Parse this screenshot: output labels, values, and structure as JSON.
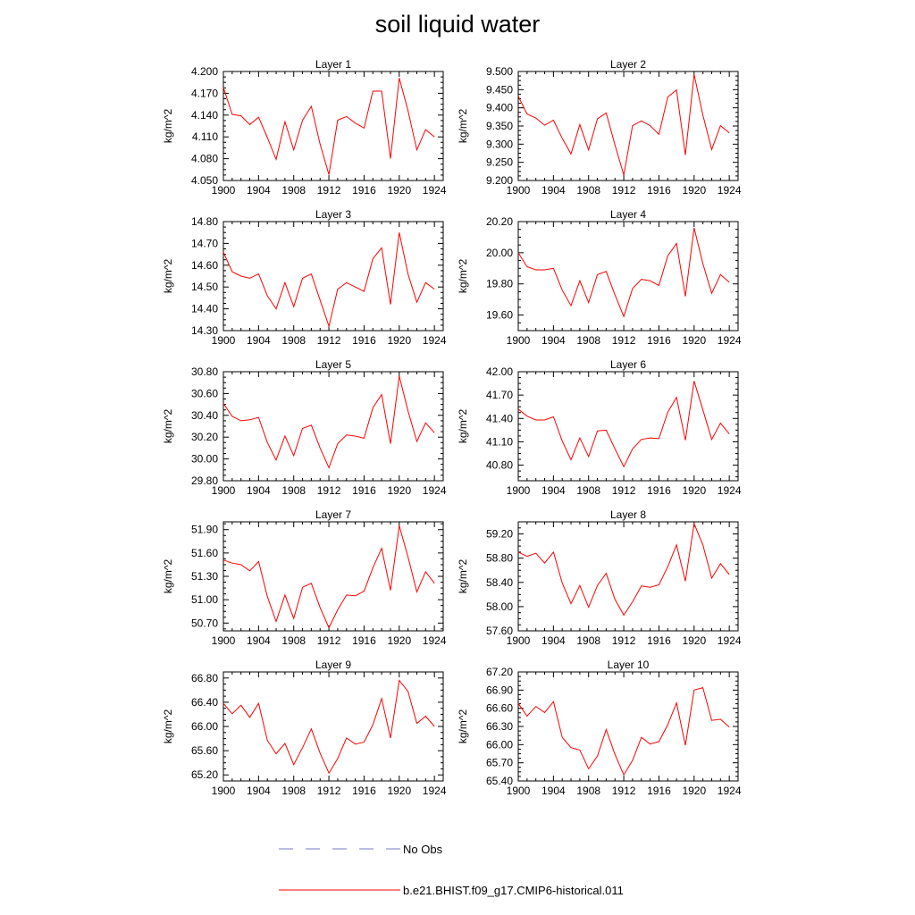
{
  "page_title": "soil liquid water",
  "legend": [
    {
      "label": "No Obs",
      "style": "dashed",
      "color": "#7a7acf"
    },
    {
      "label": "b.e21.BHIST.f09_g17.CMIP6-historical.011",
      "style": "solid",
      "color": "#ff0000"
    }
  ],
  "colors": {
    "series": "#ff0000",
    "obs": "#7a7acf"
  },
  "chart_data": [
    {
      "type": "line",
      "title": "Layer 1",
      "xlabel": "",
      "ylabel": "kg/m^2",
      "xlim": [
        1900,
        1925
      ],
      "ylim": [
        4.05,
        4.2
      ],
      "y_decimals": 3,
      "xticks": [
        1900,
        1904,
        1908,
        1912,
        1916,
        1920,
        1924
      ],
      "yticks": [
        4.05,
        4.08,
        4.11,
        4.14,
        4.17,
        4.2
      ],
      "x": [
        1900,
        1901,
        1902,
        1903,
        1904,
        1905,
        1906,
        1907,
        1908,
        1909,
        1910,
        1911,
        1912,
        1913,
        1914,
        1915,
        1916,
        1917,
        1918,
        1919,
        1920,
        1921,
        1922,
        1923,
        1924
      ],
      "series": [
        {
          "name": "b.e21.BHIST.f09_g17.CMIP6-historical.011",
          "values": [
            4.178,
            4.141,
            4.139,
            4.127,
            4.137,
            4.109,
            4.079,
            4.131,
            4.092,
            4.133,
            4.152,
            4.1,
            4.058,
            4.133,
            4.138,
            4.129,
            4.122,
            4.173,
            4.173,
            4.08,
            4.191,
            4.146,
            4.092,
            4.12,
            4.11
          ]
        }
      ]
    },
    {
      "type": "line",
      "title": "Layer 2",
      "xlabel": "",
      "ylabel": "kg/m^2",
      "xlim": [
        1900,
        1925
      ],
      "ylim": [
        9.2,
        9.5
      ],
      "y_decimals": 3,
      "xticks": [
        1900,
        1904,
        1908,
        1912,
        1916,
        1920,
        1924
      ],
      "yticks": [
        9.2,
        9.25,
        9.3,
        9.35,
        9.4,
        9.45,
        9.5
      ],
      "x": [
        1900,
        1901,
        1902,
        1903,
        1904,
        1905,
        1906,
        1907,
        1908,
        1909,
        1910,
        1911,
        1912,
        1913,
        1914,
        1915,
        1916,
        1917,
        1918,
        1919,
        1920,
        1921,
        1922,
        1923,
        1924
      ],
      "series": [
        {
          "name": "b.e21.BHIST.f09_g17.CMIP6-historical.011",
          "values": [
            9.432,
            9.383,
            9.372,
            9.352,
            9.366,
            9.316,
            9.273,
            9.354,
            9.284,
            9.37,
            9.386,
            9.298,
            9.215,
            9.351,
            9.364,
            9.351,
            9.327,
            9.43,
            9.449,
            9.27,
            9.492,
            9.38,
            9.285,
            9.351,
            9.331
          ]
        }
      ]
    },
    {
      "type": "line",
      "title": "Layer 3",
      "xlabel": "",
      "ylabel": "kg/m^2",
      "xlim": [
        1900,
        1925
      ],
      "ylim": [
        14.3,
        14.8
      ],
      "y_decimals": 2,
      "xticks": [
        1900,
        1904,
        1908,
        1912,
        1916,
        1920,
        1924
      ],
      "yticks": [
        14.3,
        14.4,
        14.5,
        14.6,
        14.7,
        14.8
      ],
      "x": [
        1900,
        1901,
        1902,
        1903,
        1904,
        1905,
        1906,
        1907,
        1908,
        1909,
        1910,
        1911,
        1912,
        1913,
        1914,
        1915,
        1916,
        1917,
        1918,
        1919,
        1920,
        1921,
        1922,
        1923,
        1924
      ],
      "series": [
        {
          "name": "b.e21.BHIST.f09_g17.CMIP6-historical.011",
          "values": [
            14.66,
            14.57,
            14.55,
            14.54,
            14.56,
            14.46,
            14.4,
            14.52,
            14.41,
            14.54,
            14.56,
            14.44,
            14.32,
            14.49,
            14.52,
            14.5,
            14.48,
            14.63,
            14.68,
            14.42,
            14.75,
            14.56,
            14.43,
            14.52,
            14.49
          ]
        }
      ]
    },
    {
      "type": "line",
      "title": "Layer 4",
      "xlabel": "",
      "ylabel": "kg/m^2",
      "xlim": [
        1900,
        1925
      ],
      "ylim": [
        19.5,
        20.2
      ],
      "y_decimals": 2,
      "xticks": [
        1900,
        1904,
        1908,
        1912,
        1916,
        1920,
        1924
      ],
      "yticks": [
        19.6,
        19.8,
        20.0,
        20.2
      ],
      "x": [
        1900,
        1901,
        1902,
        1903,
        1904,
        1905,
        1906,
        1907,
        1908,
        1909,
        1910,
        1911,
        1912,
        1913,
        1914,
        1915,
        1916,
        1917,
        1918,
        1919,
        1920,
        1921,
        1922,
        1923,
        1924
      ],
      "series": [
        {
          "name": "b.e21.BHIST.f09_g17.CMIP6-historical.011",
          "values": [
            20.0,
            19.91,
            19.89,
            19.89,
            19.9,
            19.76,
            19.66,
            19.82,
            19.68,
            19.86,
            19.88,
            19.73,
            19.59,
            19.77,
            19.83,
            19.82,
            19.79,
            19.98,
            20.06,
            19.72,
            20.16,
            19.93,
            19.74,
            19.86,
            19.81
          ]
        }
      ]
    },
    {
      "type": "line",
      "title": "Layer 5",
      "xlabel": "",
      "ylabel": "kg/m^2",
      "xlim": [
        1900,
        1925
      ],
      "ylim": [
        29.8,
        30.8
      ],
      "y_decimals": 2,
      "xticks": [
        1900,
        1904,
        1908,
        1912,
        1916,
        1920,
        1924
      ],
      "yticks": [
        29.8,
        30.0,
        30.2,
        30.4,
        30.6,
        30.8
      ],
      "x": [
        1900,
        1901,
        1902,
        1903,
        1904,
        1905,
        1906,
        1907,
        1908,
        1909,
        1910,
        1911,
        1912,
        1913,
        1914,
        1915,
        1916,
        1917,
        1918,
        1919,
        1920,
        1921,
        1922,
        1923,
        1924
      ],
      "series": [
        {
          "name": "b.e21.BHIST.f09_g17.CMIP6-historical.011",
          "values": [
            30.51,
            30.39,
            30.35,
            30.36,
            30.38,
            30.15,
            29.99,
            30.21,
            30.03,
            30.28,
            30.31,
            30.1,
            29.92,
            30.14,
            30.22,
            30.21,
            30.19,
            30.47,
            30.59,
            30.14,
            30.76,
            30.44,
            30.16,
            30.33,
            30.24
          ]
        }
      ]
    },
    {
      "type": "line",
      "title": "Layer 6",
      "xlabel": "",
      "ylabel": "kg/m^2",
      "xlim": [
        1900,
        1925
      ],
      "ylim": [
        40.6,
        42.0
      ],
      "y_decimals": 2,
      "xticks": [
        1900,
        1904,
        1908,
        1912,
        1916,
        1920,
        1924
      ],
      "yticks": [
        40.8,
        41.1,
        41.4,
        41.7,
        42.0
      ],
      "x": [
        1900,
        1901,
        1902,
        1903,
        1904,
        1905,
        1906,
        1907,
        1908,
        1909,
        1910,
        1911,
        1912,
        1913,
        1914,
        1915,
        1916,
        1917,
        1918,
        1919,
        1920,
        1921,
        1922,
        1923,
        1924
      ],
      "series": [
        {
          "name": "b.e21.BHIST.f09_g17.CMIP6-historical.011",
          "values": [
            41.52,
            41.43,
            41.38,
            41.38,
            41.42,
            41.11,
            40.87,
            41.15,
            40.91,
            41.24,
            41.25,
            41.01,
            40.78,
            41.01,
            41.13,
            41.15,
            41.14,
            41.48,
            41.67,
            41.12,
            41.88,
            41.51,
            41.13,
            41.34,
            41.2
          ]
        }
      ]
    },
    {
      "type": "line",
      "title": "Layer 7",
      "xlabel": "",
      "ylabel": "kg/m^2",
      "xlim": [
        1900,
        1925
      ],
      "ylim": [
        50.6,
        52.0
      ],
      "y_decimals": 2,
      "xticks": [
        1900,
        1904,
        1908,
        1912,
        1916,
        1920,
        1924
      ],
      "yticks": [
        50.7,
        51.0,
        51.3,
        51.6,
        51.9
      ],
      "x": [
        1900,
        1901,
        1902,
        1903,
        1904,
        1905,
        1906,
        1907,
        1908,
        1909,
        1910,
        1911,
        1912,
        1913,
        1914,
        1915,
        1916,
        1917,
        1918,
        1919,
        1920,
        1921,
        1922,
        1923,
        1924
      ],
      "series": [
        {
          "name": "b.e21.BHIST.f09_g17.CMIP6-historical.011",
          "values": [
            51.51,
            51.47,
            51.45,
            51.37,
            51.49,
            51.04,
            50.72,
            51.06,
            50.76,
            51.16,
            51.21,
            50.9,
            50.64,
            50.87,
            51.06,
            51.05,
            51.11,
            51.41,
            51.66,
            51.12,
            51.95,
            51.55,
            51.1,
            51.36,
            51.21
          ]
        }
      ]
    },
    {
      "type": "line",
      "title": "Layer 8",
      "xlabel": "",
      "ylabel": "kg/m^2",
      "xlim": [
        1900,
        1925
      ],
      "ylim": [
        57.6,
        59.4
      ],
      "y_decimals": 2,
      "xticks": [
        1900,
        1904,
        1908,
        1912,
        1916,
        1920,
        1924
      ],
      "yticks": [
        57.6,
        58.0,
        58.4,
        58.8,
        59.2
      ],
      "x": [
        1900,
        1901,
        1902,
        1903,
        1904,
        1905,
        1906,
        1907,
        1908,
        1909,
        1910,
        1911,
        1912,
        1913,
        1914,
        1915,
        1916,
        1917,
        1918,
        1919,
        1920,
        1921,
        1922,
        1923,
        1924
      ],
      "series": [
        {
          "name": "b.e21.BHIST.f09_g17.CMIP6-historical.011",
          "values": [
            58.9,
            58.83,
            58.88,
            58.72,
            58.9,
            58.39,
            58.05,
            58.35,
            57.99,
            58.35,
            58.55,
            58.12,
            57.86,
            58.08,
            58.34,
            58.32,
            58.36,
            58.66,
            59.02,
            58.42,
            59.37,
            59.02,
            58.47,
            58.71,
            58.53
          ]
        }
      ]
    },
    {
      "type": "line",
      "title": "Layer 9",
      "xlabel": "",
      "ylabel": "kg/m^2",
      "xlim": [
        1900,
        1925
      ],
      "ylim": [
        65.1,
        66.9
      ],
      "y_decimals": 2,
      "xticks": [
        1900,
        1904,
        1908,
        1912,
        1916,
        1920,
        1924
      ],
      "yticks": [
        65.2,
        65.6,
        66.0,
        66.4,
        66.8
      ],
      "x": [
        1900,
        1901,
        1902,
        1903,
        1904,
        1905,
        1906,
        1907,
        1908,
        1909,
        1910,
        1911,
        1912,
        1913,
        1914,
        1915,
        1916,
        1917,
        1918,
        1919,
        1920,
        1921,
        1922,
        1923,
        1924
      ],
      "series": [
        {
          "name": "b.e21.BHIST.f09_g17.CMIP6-historical.011",
          "values": [
            66.38,
            66.21,
            66.35,
            66.15,
            66.38,
            65.77,
            65.55,
            65.72,
            65.37,
            65.65,
            65.96,
            65.56,
            65.23,
            65.47,
            65.81,
            65.71,
            65.74,
            66.03,
            66.46,
            65.81,
            66.76,
            66.58,
            66.05,
            66.17,
            66.0
          ]
        }
      ]
    },
    {
      "type": "line",
      "title": "Layer 10",
      "xlabel": "",
      "ylabel": "kg/m^2",
      "xlim": [
        1900,
        1925
      ],
      "ylim": [
        65.4,
        67.2
      ],
      "y_decimals": 2,
      "xticks": [
        1900,
        1904,
        1908,
        1912,
        1916,
        1920,
        1924
      ],
      "yticks": [
        65.4,
        65.7,
        66.0,
        66.3,
        66.6,
        66.9,
        67.2
      ],
      "x": [
        1900,
        1901,
        1902,
        1903,
        1904,
        1905,
        1906,
        1907,
        1908,
        1909,
        1910,
        1911,
        1912,
        1913,
        1914,
        1915,
        1916,
        1917,
        1918,
        1919,
        1920,
        1921,
        1922,
        1923,
        1924
      ],
      "series": [
        {
          "name": "b.e21.BHIST.f09_g17.CMIP6-historical.011",
          "values": [
            66.68,
            66.47,
            66.63,
            66.53,
            66.71,
            66.12,
            65.95,
            65.91,
            65.6,
            65.81,
            66.25,
            65.84,
            65.5,
            65.74,
            66.12,
            66.01,
            66.05,
            66.33,
            66.69,
            65.99,
            66.9,
            66.94,
            66.4,
            66.42,
            66.29
          ]
        }
      ]
    }
  ]
}
